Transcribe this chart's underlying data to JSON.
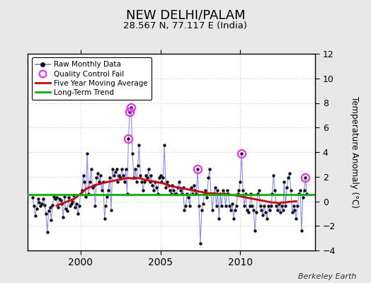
{
  "title": "NEW DELHI/PALAM",
  "subtitle": "28.567 N, 77.117 E (India)",
  "ylabel": "Temperature Anomaly (°C)",
  "credit": "Berkeley Earth",
  "ylim": [
    -4,
    12
  ],
  "yticks": [
    -4,
    -2,
    0,
    2,
    4,
    6,
    8,
    10,
    12
  ],
  "xlim_start": 1996.7,
  "xlim_end": 2014.7,
  "xticks": [
    2000,
    2005,
    2010
  ],
  "bg_color": "#e8e8e8",
  "plot_bg_color": "#ffffff",
  "raw_line_color": "#7777ff",
  "raw_dot_color": "#111111",
  "moving_avg_color": "#dd0000",
  "trend_color": "#00bb00",
  "qc_fail_color": "#ff22ff",
  "trend_value": 0.55,
  "raw_data": [
    [
      1997.0,
      0.3
    ],
    [
      1997.083,
      -0.4
    ],
    [
      1997.167,
      -1.2
    ],
    [
      1997.25,
      -0.6
    ],
    [
      1997.333,
      0.2
    ],
    [
      1997.417,
      -0.1
    ],
    [
      1997.5,
      -0.4
    ],
    [
      1997.583,
      -0.2
    ],
    [
      1997.667,
      0.2
    ],
    [
      1997.75,
      -0.3
    ],
    [
      1997.833,
      -1.0
    ],
    [
      1997.917,
      -2.5
    ],
    [
      1998.0,
      -0.8
    ],
    [
      1998.083,
      -0.5
    ],
    [
      1998.167,
      -1.5
    ],
    [
      1998.25,
      -0.3
    ],
    [
      1998.333,
      0.4
    ],
    [
      1998.417,
      0.2
    ],
    [
      1998.5,
      0.3
    ],
    [
      1998.583,
      -0.5
    ],
    [
      1998.667,
      0.2
    ],
    [
      1998.75,
      0.1
    ],
    [
      1998.833,
      -0.2
    ],
    [
      1998.917,
      -1.3
    ],
    [
      1999.0,
      0.4
    ],
    [
      1999.083,
      -0.6
    ],
    [
      1999.167,
      -0.8
    ],
    [
      1999.25,
      0.3
    ],
    [
      1999.333,
      -0.4
    ],
    [
      1999.417,
      -0.2
    ],
    [
      1999.5,
      0.0
    ],
    [
      1999.583,
      0.5
    ],
    [
      1999.667,
      -0.5
    ],
    [
      1999.75,
      -0.2
    ],
    [
      1999.833,
      -1.0
    ],
    [
      1999.917,
      -0.4
    ],
    [
      2000.0,
      0.6
    ],
    [
      2000.083,
      0.9
    ],
    [
      2000.167,
      2.1
    ],
    [
      2000.25,
      1.6
    ],
    [
      2000.333,
      0.4
    ],
    [
      2000.417,
      3.9
    ],
    [
      2000.5,
      0.6
    ],
    [
      2000.583,
      1.6
    ],
    [
      2000.667,
      2.6
    ],
    [
      2000.75,
      1.1
    ],
    [
      2000.833,
      1.3
    ],
    [
      2000.917,
      -0.4
    ],
    [
      2001.0,
      1.9
    ],
    [
      2001.083,
      2.3
    ],
    [
      2001.167,
      1.6
    ],
    [
      2001.25,
      2.1
    ],
    [
      2001.333,
      0.9
    ],
    [
      2001.417,
      1.6
    ],
    [
      2001.5,
      -1.4
    ],
    [
      2001.583,
      -0.4
    ],
    [
      2001.667,
      0.4
    ],
    [
      2001.75,
      0.9
    ],
    [
      2001.833,
      1.9
    ],
    [
      2001.917,
      -0.7
    ],
    [
      2002.0,
      2.6
    ],
    [
      2002.083,
      2.1
    ],
    [
      2002.167,
      2.4
    ],
    [
      2002.25,
      2.6
    ],
    [
      2002.333,
      1.6
    ],
    [
      2002.417,
      2.1
    ],
    [
      2002.5,
      1.9
    ],
    [
      2002.583,
      2.6
    ],
    [
      2002.667,
      2.1
    ],
    [
      2002.75,
      1.6
    ],
    [
      2002.833,
      2.6
    ],
    [
      2002.917,
      0.6
    ],
    [
      2003.0,
      5.1
    ],
    [
      2003.083,
      7.3
    ],
    [
      2003.167,
      7.6
    ],
    [
      2003.25,
      3.9
    ],
    [
      2003.333,
      1.9
    ],
    [
      2003.417,
      2.6
    ],
    [
      2003.5,
      1.6
    ],
    [
      2003.583,
      2.9
    ],
    [
      2003.667,
      4.6
    ],
    [
      2003.75,
      2.1
    ],
    [
      2003.833,
      1.6
    ],
    [
      2003.917,
      0.9
    ],
    [
      2004.0,
      1.6
    ],
    [
      2004.083,
      2.1
    ],
    [
      2004.167,
      1.9
    ],
    [
      2004.25,
      2.6
    ],
    [
      2004.333,
      1.6
    ],
    [
      2004.417,
      2.1
    ],
    [
      2004.5,
      1.3
    ],
    [
      2004.583,
      0.9
    ],
    [
      2004.667,
      1.6
    ],
    [
      2004.75,
      1.1
    ],
    [
      2004.833,
      0.6
    ],
    [
      2004.917,
      1.9
    ],
    [
      2005.0,
      2.1
    ],
    [
      2005.083,
      1.6
    ],
    [
      2005.167,
      1.9
    ],
    [
      2005.25,
      4.6
    ],
    [
      2005.333,
      1.1
    ],
    [
      2005.417,
      1.6
    ],
    [
      2005.5,
      1.3
    ],
    [
      2005.583,
      0.9
    ],
    [
      2005.667,
      0.6
    ],
    [
      2005.75,
      1.3
    ],
    [
      2005.833,
      0.9
    ],
    [
      2005.917,
      0.6
    ],
    [
      2006.0,
      0.6
    ],
    [
      2006.083,
      1.1
    ],
    [
      2006.167,
      1.6
    ],
    [
      2006.25,
      0.9
    ],
    [
      2006.333,
      0.6
    ],
    [
      2006.417,
      1.1
    ],
    [
      2006.5,
      -0.7
    ],
    [
      2006.583,
      -0.4
    ],
    [
      2006.667,
      0.6
    ],
    [
      2006.75,
      0.3
    ],
    [
      2006.833,
      -0.4
    ],
    [
      2006.917,
      1.1
    ],
    [
      2007.0,
      0.6
    ],
    [
      2007.083,
      1.3
    ],
    [
      2007.167,
      0.9
    ],
    [
      2007.25,
      0.6
    ],
    [
      2007.333,
      2.6
    ],
    [
      2007.417,
      -0.4
    ],
    [
      2007.5,
      -3.4
    ],
    [
      2007.583,
      -0.7
    ],
    [
      2007.667,
      -0.2
    ],
    [
      2007.75,
      0.6
    ],
    [
      2007.833,
      0.9
    ],
    [
      2007.917,
      0.3
    ],
    [
      2008.0,
      1.9
    ],
    [
      2008.083,
      2.6
    ],
    [
      2008.167,
      0.6
    ],
    [
      2008.25,
      -0.7
    ],
    [
      2008.333,
      0.6
    ],
    [
      2008.417,
      1.1
    ],
    [
      2008.5,
      -0.4
    ],
    [
      2008.583,
      0.9
    ],
    [
      2008.667,
      -1.4
    ],
    [
      2008.75,
      0.6
    ],
    [
      2008.833,
      -0.4
    ],
    [
      2008.917,
      0.9
    ],
    [
      2009.0,
      0.6
    ],
    [
      2009.083,
      -0.4
    ],
    [
      2009.167,
      0.9
    ],
    [
      2009.25,
      0.6
    ],
    [
      2009.333,
      -0.4
    ],
    [
      2009.417,
      -0.7
    ],
    [
      2009.5,
      -0.2
    ],
    [
      2009.583,
      -1.4
    ],
    [
      2009.667,
      -0.7
    ],
    [
      2009.75,
      -0.4
    ],
    [
      2009.833,
      0.6
    ],
    [
      2009.917,
      0.9
    ],
    [
      2010.0,
      1.6
    ],
    [
      2010.083,
      3.9
    ],
    [
      2010.167,
      0.9
    ],
    [
      2010.25,
      -0.4
    ],
    [
      2010.333,
      0.6
    ],
    [
      2010.417,
      -0.7
    ],
    [
      2010.5,
      -0.9
    ],
    [
      2010.583,
      -0.4
    ],
    [
      2010.667,
      0.6
    ],
    [
      2010.75,
      -0.4
    ],
    [
      2010.833,
      -0.7
    ],
    [
      2010.917,
      -2.4
    ],
    [
      2011.0,
      -0.9
    ],
    [
      2011.083,
      0.6
    ],
    [
      2011.167,
      0.9
    ],
    [
      2011.25,
      -0.4
    ],
    [
      2011.333,
      -0.7
    ],
    [
      2011.417,
      -1.1
    ],
    [
      2011.5,
      -0.4
    ],
    [
      2011.583,
      -0.9
    ],
    [
      2011.667,
      -1.4
    ],
    [
      2011.75,
      -0.4
    ],
    [
      2011.833,
      -0.7
    ],
    [
      2011.917,
      -0.4
    ],
    [
      2012.0,
      0.6
    ],
    [
      2012.083,
      2.1
    ],
    [
      2012.167,
      0.9
    ],
    [
      2012.25,
      -0.4
    ],
    [
      2012.333,
      -0.7
    ],
    [
      2012.417,
      -0.2
    ],
    [
      2012.5,
      -0.9
    ],
    [
      2012.583,
      -0.4
    ],
    [
      2012.667,
      -0.7
    ],
    [
      2012.75,
      1.6
    ],
    [
      2012.833,
      -0.4
    ],
    [
      2012.917,
      1.1
    ],
    [
      2013.0,
      1.9
    ],
    [
      2013.083,
      2.3
    ],
    [
      2013.167,
      0.9
    ],
    [
      2013.25,
      -0.9
    ],
    [
      2013.333,
      -0.4
    ],
    [
      2013.417,
      -0.7
    ],
    [
      2013.5,
      -1.4
    ],
    [
      2013.583,
      -0.4
    ],
    [
      2013.667,
      0.6
    ],
    [
      2013.75,
      0.9
    ],
    [
      2013.833,
      -2.4
    ],
    [
      2013.917,
      0.3
    ],
    [
      2014.0,
      0.9
    ],
    [
      2014.083,
      1.9
    ],
    [
      2014.167,
      0.6
    ]
  ],
  "qc_fail_points": [
    [
      2003.0,
      5.1
    ],
    [
      2003.083,
      7.3
    ],
    [
      2003.167,
      7.6
    ],
    [
      2007.333,
      2.6
    ],
    [
      2010.083,
      3.9
    ],
    [
      2014.083,
      1.9
    ]
  ],
  "moving_avg": [
    [
      1998.5,
      -0.35
    ],
    [
      1998.6,
      -0.3
    ],
    [
      1998.7,
      -0.25
    ],
    [
      1998.8,
      -0.2
    ],
    [
      1998.9,
      -0.15
    ],
    [
      1999.0,
      -0.1
    ],
    [
      1999.1,
      -0.05
    ],
    [
      1999.2,
      0.0
    ],
    [
      1999.3,
      0.05
    ],
    [
      1999.4,
      0.1
    ],
    [
      1999.5,
      0.15
    ],
    [
      1999.6,
      0.2
    ],
    [
      1999.7,
      0.3
    ],
    [
      1999.8,
      0.4
    ],
    [
      1999.9,
      0.5
    ],
    [
      2000.0,
      0.6
    ],
    [
      2000.1,
      0.7
    ],
    [
      2000.2,
      0.85
    ],
    [
      2000.3,
      0.95
    ],
    [
      2000.4,
      1.05
    ],
    [
      2000.5,
      1.1
    ],
    [
      2000.6,
      1.15
    ],
    [
      2000.7,
      1.2
    ],
    [
      2000.8,
      1.25
    ],
    [
      2000.9,
      1.3
    ],
    [
      2001.0,
      1.35
    ],
    [
      2001.2,
      1.4
    ],
    [
      2001.4,
      1.5
    ],
    [
      2001.6,
      1.55
    ],
    [
      2001.8,
      1.6
    ],
    [
      2002.0,
      1.65
    ],
    [
      2002.2,
      1.7
    ],
    [
      2002.4,
      1.75
    ],
    [
      2002.6,
      1.8
    ],
    [
      2002.8,
      1.85
    ],
    [
      2003.0,
      1.9
    ],
    [
      2003.2,
      1.85
    ],
    [
      2003.4,
      1.85
    ],
    [
      2003.6,
      1.9
    ],
    [
      2003.8,
      1.85
    ],
    [
      2004.0,
      1.75
    ],
    [
      2004.2,
      1.7
    ],
    [
      2004.4,
      1.65
    ],
    [
      2004.6,
      1.6
    ],
    [
      2004.8,
      1.55
    ],
    [
      2005.0,
      1.5
    ],
    [
      2005.2,
      1.45
    ],
    [
      2005.4,
      1.35
    ],
    [
      2005.6,
      1.25
    ],
    [
      2005.8,
      1.2
    ],
    [
      2006.0,
      1.15
    ],
    [
      2006.2,
      1.1
    ],
    [
      2006.4,
      1.05
    ],
    [
      2006.6,
      1.0
    ],
    [
      2006.8,
      0.95
    ],
    [
      2007.0,
      0.9
    ],
    [
      2007.2,
      0.85
    ],
    [
      2007.4,
      0.8
    ],
    [
      2007.6,
      0.75
    ],
    [
      2007.8,
      0.7
    ],
    [
      2008.0,
      0.65
    ],
    [
      2008.2,
      0.65
    ],
    [
      2008.4,
      0.65
    ],
    [
      2008.6,
      0.6
    ],
    [
      2008.8,
      0.6
    ],
    [
      2009.0,
      0.6
    ],
    [
      2009.2,
      0.55
    ],
    [
      2009.4,
      0.5
    ],
    [
      2009.6,
      0.5
    ],
    [
      2009.8,
      0.45
    ],
    [
      2010.0,
      0.4
    ],
    [
      2010.2,
      0.35
    ],
    [
      2010.4,
      0.3
    ],
    [
      2010.6,
      0.25
    ],
    [
      2010.8,
      0.2
    ],
    [
      2011.0,
      0.15
    ],
    [
      2011.2,
      0.1
    ],
    [
      2011.4,
      0.05
    ],
    [
      2011.6,
      0.0
    ],
    [
      2011.8,
      -0.05
    ],
    [
      2012.0,
      -0.1
    ],
    [
      2012.2,
      -0.1
    ],
    [
      2012.4,
      -0.15
    ],
    [
      2012.6,
      -0.1
    ],
    [
      2012.8,
      -0.1
    ],
    [
      2013.0,
      -0.05
    ],
    [
      2013.5,
      0.0
    ]
  ]
}
